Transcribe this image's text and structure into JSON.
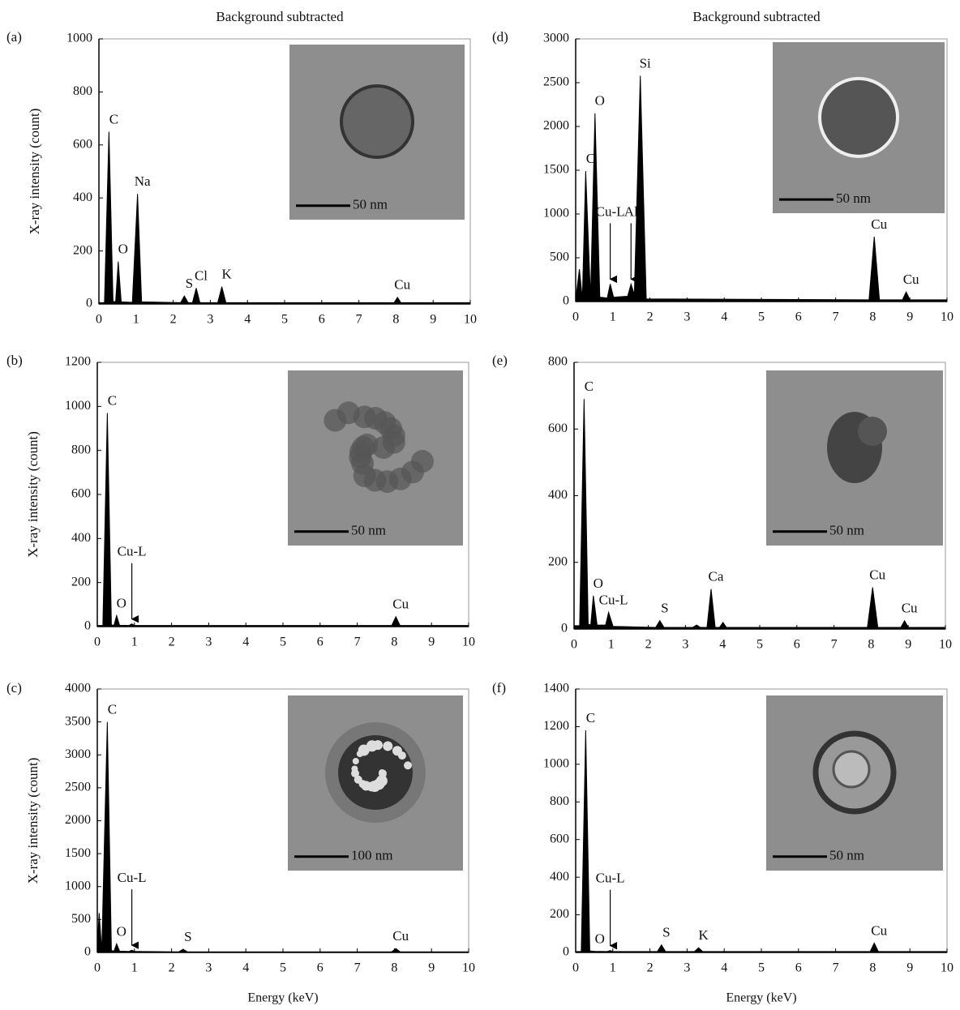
{
  "chart_data": [
    {
      "type": "area",
      "label": "(a)",
      "title": "Background subtracted",
      "ylabel": "X-ray intensity (count)",
      "inset_scale": "50 nm",
      "color": "#000000",
      "xlim": [
        0,
        10
      ],
      "xticks": [
        0,
        1,
        2,
        3,
        4,
        5,
        6,
        7,
        8,
        9,
        10
      ],
      "ylim": [
        0,
        1000
      ],
      "yticks": [
        0,
        200,
        400,
        600,
        800,
        1000
      ],
      "x": [
        0,
        0.15,
        0.27,
        0.38,
        0.45,
        0.52,
        0.6,
        0.9,
        1.04,
        1.15,
        2.2,
        2.3,
        2.4,
        2.52,
        2.62,
        2.72,
        3.2,
        3.31,
        3.42,
        7.95,
        8.04,
        8.13,
        10
      ],
      "values": [
        5,
        5,
        650,
        10,
        8,
        160,
        8,
        6,
        415,
        8,
        5,
        30,
        5,
        5,
        60,
        5,
        5,
        65,
        5,
        5,
        25,
        5,
        5
      ],
      "annotations": [
        {
          "text": "C",
          "x": 0.27
        },
        {
          "text": "O",
          "x": 0.52
        },
        {
          "text": "Na",
          "x": 1.04
        },
        {
          "text": "S",
          "x": 2.3
        },
        {
          "text": "Cl",
          "x": 2.62
        },
        {
          "text": "K",
          "x": 3.31
        },
        {
          "text": "Cu",
          "x": 8.04
        }
      ]
    },
    {
      "type": "area",
      "label": "(b)",
      "ylabel": "X-ray intensity (count)",
      "inset_scale": "50 nm",
      "color": "#000000",
      "xlim": [
        0,
        10
      ],
      "xticks": [
        0,
        1,
        2,
        3,
        4,
        5,
        6,
        7,
        8,
        9,
        10
      ],
      "ylim": [
        0,
        1200
      ],
      "yticks": [
        0,
        200,
        400,
        600,
        800,
        1000,
        1200
      ],
      "x": [
        0,
        0.15,
        0.27,
        0.38,
        0.45,
        0.52,
        0.6,
        0.85,
        0.93,
        1.0,
        7.93,
        8.04,
        8.15,
        10
      ],
      "values": [
        5,
        5,
        970,
        8,
        6,
        50,
        6,
        5,
        12,
        5,
        5,
        45,
        5,
        5
      ],
      "annotations": [
        {
          "text": "C",
          "x": 0.27
        },
        {
          "text": "O",
          "x": 0.52
        },
        {
          "text": "Cu-L",
          "x": 0.93,
          "arrow": true
        },
        {
          "text": "Cu",
          "x": 8.04
        }
      ]
    },
    {
      "type": "area",
      "label": "(c)",
      "ylabel": "X-ray intensity (count)",
      "xlabel": "Energy (keV)",
      "inset_scale": "100 nm",
      "color": "#000000",
      "xlim": [
        0,
        10
      ],
      "xticks": [
        0,
        1,
        2,
        3,
        4,
        5,
        6,
        7,
        8,
        9,
        10
      ],
      "ylim": [
        0,
        4000
      ],
      "yticks": [
        0,
        500,
        1000,
        1500,
        2000,
        2500,
        3000,
        3500,
        4000
      ],
      "x": [
        0,
        0.05,
        0.12,
        0.27,
        0.38,
        0.45,
        0.52,
        0.6,
        0.85,
        0.93,
        1.0,
        2.2,
        2.31,
        2.42,
        7.93,
        8.04,
        8.15,
        10
      ],
      "values": [
        100,
        600,
        20,
        3500,
        30,
        20,
        130,
        20,
        15,
        35,
        15,
        10,
        50,
        10,
        10,
        60,
        10,
        10
      ],
      "annotations": [
        {
          "text": "C",
          "x": 0.27
        },
        {
          "text": "O",
          "x": 0.52
        },
        {
          "text": "Cu-L",
          "x": 0.93,
          "arrow": true
        },
        {
          "text": "S",
          "x": 2.31
        },
        {
          "text": "Cu",
          "x": 8.04
        }
      ]
    },
    {
      "type": "area",
      "label": "(d)",
      "title": "Background subtracted",
      "inset_scale": "50 nm",
      "color": "#000000",
      "xlim": [
        0,
        10
      ],
      "xticks": [
        0,
        1,
        2,
        3,
        4,
        5,
        6,
        7,
        8,
        9,
        10
      ],
      "ylim": [
        0,
        3000
      ],
      "yticks": [
        0,
        500,
        1000,
        1500,
        2000,
        2500,
        3000
      ],
      "x": [
        0,
        0.1,
        0.18,
        0.27,
        0.4,
        0.52,
        0.65,
        0.85,
        0.93,
        1.02,
        1.4,
        1.49,
        1.58,
        1.74,
        1.9,
        7.9,
        8.04,
        8.18,
        8.8,
        8.9,
        9.0,
        10
      ],
      "values": [
        20,
        370,
        30,
        1490,
        40,
        2150,
        50,
        40,
        200,
        50,
        60,
        200,
        80,
        2580,
        30,
        20,
        740,
        20,
        20,
        110,
        20,
        20
      ],
      "annotations": [
        {
          "text": "C",
          "x": 0.27
        },
        {
          "text": "O",
          "x": 0.52
        },
        {
          "text": "Cu-L",
          "x": 0.93,
          "arrow": true
        },
        {
          "text": "Al",
          "x": 1.49,
          "arrow": true
        },
        {
          "text": "Si",
          "x": 1.74
        },
        {
          "text": "Cu",
          "x": 8.04
        },
        {
          "text": "Cu",
          "x": 8.9
        }
      ]
    },
    {
      "type": "area",
      "label": "(e)",
      "inset_scale": "50 nm",
      "color": "#000000",
      "xlim": [
        0,
        10
      ],
      "xticks": [
        0,
        1,
        2,
        3,
        4,
        5,
        6,
        7,
        8,
        9,
        10
      ],
      "ylim": [
        0,
        800
      ],
      "yticks": [
        0,
        200,
        400,
        600,
        800
      ],
      "x": [
        0,
        0.15,
        0.27,
        0.38,
        0.45,
        0.52,
        0.62,
        0.85,
        0.93,
        1.05,
        2.2,
        2.31,
        2.42,
        3.2,
        3.3,
        3.4,
        3.58,
        3.69,
        3.8,
        3.92,
        4.01,
        4.1,
        7.9,
        8.04,
        8.18,
        8.8,
        8.9,
        9.0,
        10
      ],
      "values": [
        10,
        10,
        690,
        15,
        12,
        100,
        12,
        12,
        50,
        8,
        5,
        25,
        5,
        5,
        12,
        5,
        5,
        120,
        5,
        5,
        20,
        5,
        5,
        125,
        5,
        5,
        25,
        5,
        5
      ],
      "annotations": [
        {
          "text": "C",
          "x": 0.27
        },
        {
          "text": "O",
          "x": 0.52
        },
        {
          "text": "Cu-L",
          "x": 0.93
        },
        {
          "text": "S",
          "x": 2.31
        },
        {
          "text": "Ca",
          "x": 3.69
        },
        {
          "text": "Cu",
          "x": 8.04
        },
        {
          "text": "Cu",
          "x": 8.9
        }
      ]
    },
    {
      "type": "area",
      "label": "(f)",
      "xlabel": "Energy (keV)",
      "inset_scale": "50 nm",
      "color": "#000000",
      "xlim": [
        0,
        10
      ],
      "xticks": [
        0,
        1,
        2,
        3,
        4,
        5,
        6,
        7,
        8,
        9,
        10
      ],
      "ylim": [
        0,
        1400
      ],
      "yticks": [
        0,
        200,
        400,
        600,
        800,
        1000,
        1200,
        1400
      ],
      "x": [
        0,
        0.15,
        0.27,
        0.38,
        0.52,
        0.85,
        0.93,
        1.0,
        2.2,
        2.31,
        2.42,
        3.2,
        3.31,
        3.42,
        7.93,
        8.04,
        8.15,
        10
      ],
      "values": [
        5,
        5,
        1180,
        8,
        6,
        5,
        10,
        5,
        5,
        40,
        5,
        5,
        25,
        5,
        5,
        50,
        5,
        5
      ],
      "annotations": [
        {
          "text": "C",
          "x": 0.27
        },
        {
          "text": "O",
          "x": 0.52
        },
        {
          "text": "Cu-L",
          "x": 0.93,
          "arrow": true
        },
        {
          "text": "S",
          "x": 2.31
        },
        {
          "text": "K",
          "x": 3.31
        },
        {
          "text": "Cu",
          "x": 8.04
        }
      ]
    }
  ]
}
